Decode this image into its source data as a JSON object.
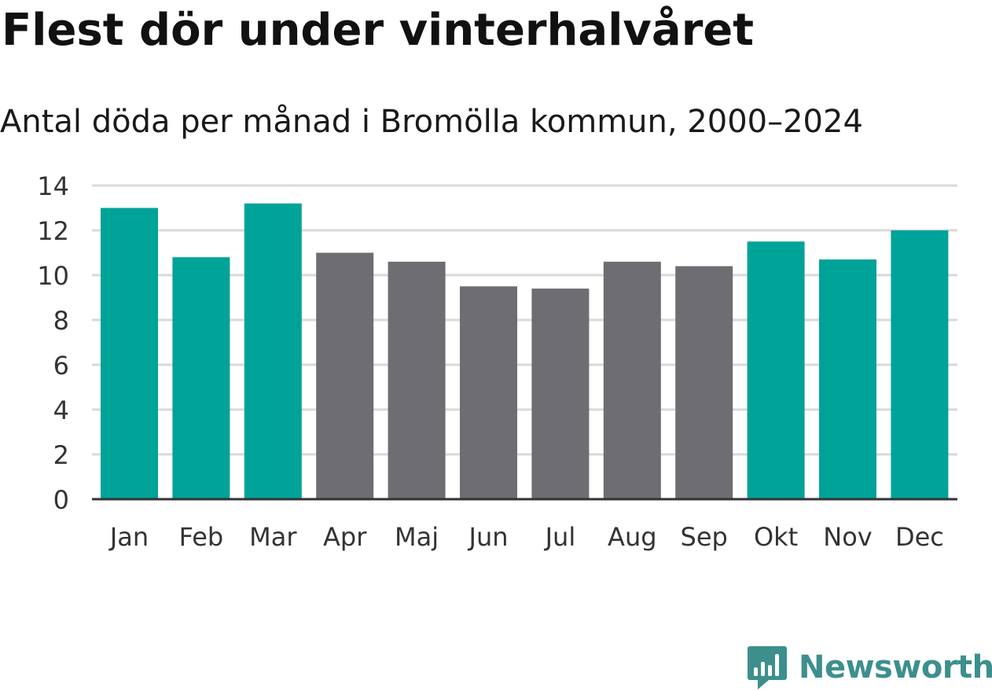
{
  "header": {
    "title": "Flest dör under vinterhalvåret",
    "subtitle": "Antal döda per månad i Bromölla kommun, 2000–2024"
  },
  "colors": {
    "winter": "#00a398",
    "summer": "#6e6d72",
    "grid": "#d9d9d9",
    "axis": "#333333",
    "brand": "#3d8f8e"
  },
  "branding": {
    "name": "Newsworthy",
    "icon": "newsworthy-logo-icon"
  },
  "chart_data": {
    "type": "bar",
    "title": "Flest dör under vinterhalvåret",
    "subtitle": "Antal döda per månad i Bromölla kommun, 2000–2024",
    "xlabel": "",
    "ylabel": "",
    "ylim": [
      0,
      14
    ],
    "yticks": [
      0,
      2,
      4,
      6,
      8,
      10,
      12,
      14
    ],
    "grid": true,
    "legend": "none",
    "categories": [
      "Jan",
      "Feb",
      "Mar",
      "Apr",
      "Maj",
      "Jun",
      "Jul",
      "Aug",
      "Sep",
      "Okt",
      "Nov",
      "Dec"
    ],
    "values": [
      13.0,
      10.8,
      13.2,
      11.0,
      10.6,
      9.5,
      9.4,
      10.6,
      10.4,
      11.5,
      10.7,
      12.0
    ],
    "groups": [
      "winter",
      "winter",
      "winter",
      "summer",
      "summer",
      "summer",
      "summer",
      "summer",
      "summer",
      "winter",
      "winter",
      "winter"
    ]
  }
}
